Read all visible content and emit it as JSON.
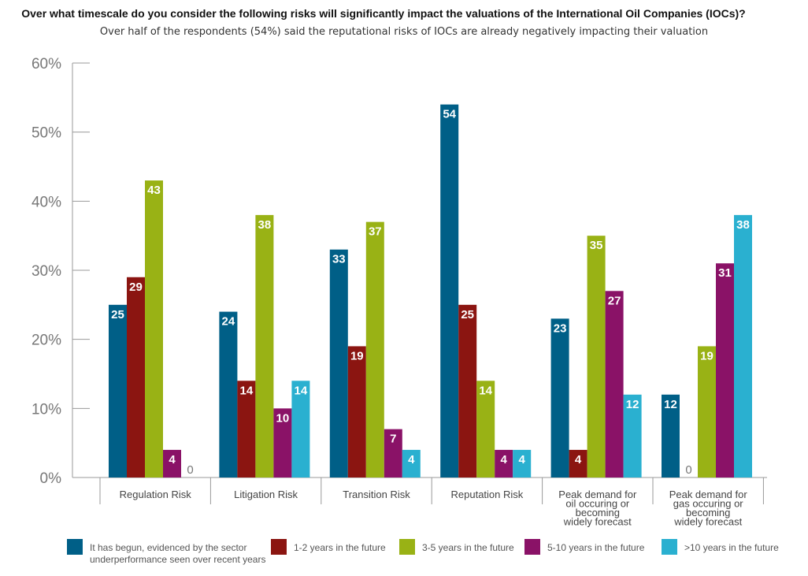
{
  "chart_data": {
    "type": "bar",
    "title": "Over what timescale do you consider the following risks will significantly impact the valuations of the International Oil Companies (IOCs)?",
    "subtitle": "Over half of the respondents (54%) said the reputational risks of IOCs are already negatively impacting their valuation",
    "categories": [
      [
        "Regulation Risk"
      ],
      [
        "Litigation Risk"
      ],
      [
        "Transition Risk"
      ],
      [
        "Reputation Risk"
      ],
      [
        "Peak demand for",
        "oil occuring or",
        "becoming",
        "widely forecast"
      ],
      [
        "Peak demand for",
        "gas occuring or",
        "becoming",
        "widely forecast"
      ]
    ],
    "series": [
      {
        "name": [
          "It has begun, evidenced by the sector",
          "underperformance seen over recent years"
        ],
        "color": "#005f87",
        "values": [
          25,
          24,
          33,
          54,
          23,
          12
        ]
      },
      {
        "name": [
          "1-2 years in the future"
        ],
        "color": "#8b1511",
        "values": [
          29,
          14,
          19,
          25,
          4,
          0
        ]
      },
      {
        "name": [
          "3-5 years in the future"
        ],
        "color": "#99b215",
        "values": [
          43,
          38,
          37,
          14,
          35,
          19
        ]
      },
      {
        "name": [
          "5-10 years in the future"
        ],
        "color": "#8a1267",
        "values": [
          4,
          10,
          7,
          4,
          27,
          31
        ]
      },
      {
        "name": [
          ">10 years in the future"
        ],
        "color": "#2ab0d0",
        "values": [
          0,
          14,
          4,
          4,
          12,
          38
        ]
      }
    ],
    "ylim": [
      0,
      60
    ],
    "yticks": [
      "0%",
      "10%",
      "20%",
      "30%",
      "40%",
      "50%",
      "60%"
    ],
    "legend_position": "bottom",
    "grid": false
  }
}
